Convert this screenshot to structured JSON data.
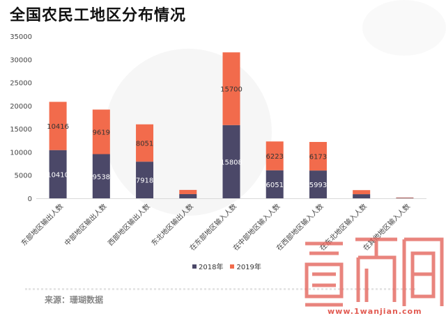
{
  "page_title": "全国农民工地区分布情况",
  "source": "来源：珊瑚数据",
  "watermark": {
    "url": "www.1wanjian.com"
  },
  "colors": {
    "series_2018": "#4b4868",
    "series_2019": "#f26b4c"
  },
  "chart_data": {
    "type": "bar",
    "stacked": true,
    "title": "全国农民工地区分布情况",
    "categories": [
      "东部地区输出人数",
      "中部地区输出人数",
      "西部地区输出人数",
      "东北地区输出人数",
      "在东部地区输入人数",
      "在中部地区输入人数",
      "在西部地区输入人数",
      "在东北地区输入人数",
      "在其他地区输入人数"
    ],
    "series": [
      {
        "name": "2018年",
        "values": [
          10410,
          9538,
          7918,
          905,
          15808,
          6051,
          5993,
          890,
          75
        ]
      },
      {
        "name": "2019年",
        "values": [
          10416,
          9619,
          8051,
          910,
          15700,
          6223,
          6173,
          880,
          90
        ]
      }
    ],
    "data_labels": [
      [
        "10410",
        "9538",
        "7918",
        "",
        "15808",
        "6051",
        "5993",
        "",
        ""
      ],
      [
        "10416",
        "9619",
        "8051",
        "",
        "15700",
        "6223",
        "6173",
        "",
        ""
      ]
    ],
    "yticks": [
      "35000",
      "30000",
      "25000",
      "20000",
      "15000",
      "10000",
      "5000",
      "0"
    ],
    "ylim": [
      0,
      35000
    ],
    "legend_position": "bottom",
    "grid": false
  }
}
